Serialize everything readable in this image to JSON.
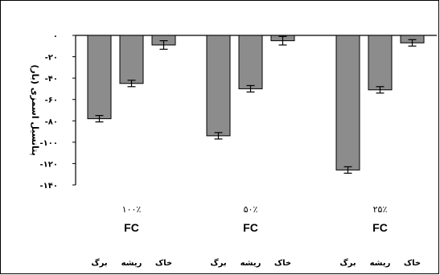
{
  "chart_data": {
    "type": "bar",
    "ylabel": "پتانسیل اسمزی (بار)",
    "ylim": [
      -140,
      0
    ],
    "yticks": [
      0,
      -20,
      -40,
      -60,
      -80,
      -100,
      -120,
      -140
    ],
    "ytick_labels": [
      "۰",
      "-۲۰",
      "-۴۰",
      "-۶۰",
      "-۸۰",
      "-۱۰۰",
      "-۱۲۰",
      "-۱۴۰"
    ],
    "grid": false,
    "groups": [
      {
        "percent": "۱۰۰٪",
        "suffix": "FC",
        "bars": [
          {
            "category": "برگ",
            "value": -78,
            "error": 3
          },
          {
            "category": "ریشه",
            "value": -45,
            "error": 3
          },
          {
            "category": "خاک",
            "value": -9,
            "error": 4
          }
        ]
      },
      {
        "percent": "۵۰٪",
        "suffix": "FC",
        "bars": [
          {
            "category": "برگ",
            "value": -94,
            "error": 3
          },
          {
            "category": "ریشه",
            "value": -50,
            "error": 3
          },
          {
            "category": "خاک",
            "value": -5,
            "error": 4
          }
        ]
      },
      {
        "percent": "۲۵٪",
        "suffix": "FC",
        "bars": [
          {
            "category": "برگ",
            "value": -126,
            "error": 3
          },
          {
            "category": "ریشه",
            "value": -51,
            "error": 3
          },
          {
            "category": "خاک",
            "value": -7,
            "error": 3
          }
        ]
      }
    ]
  }
}
